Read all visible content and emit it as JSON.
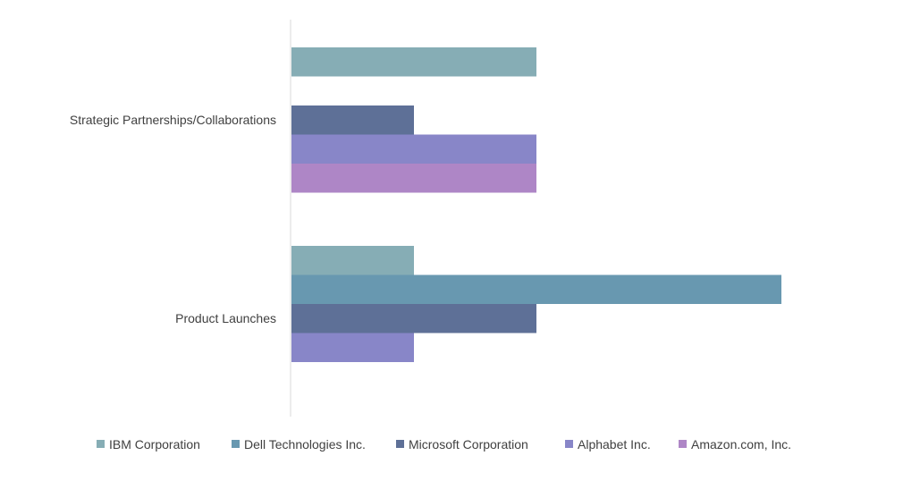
{
  "chart_data": {
    "type": "bar",
    "orientation": "horizontal",
    "categories": [
      "Strategic Partnerships/Collaborations",
      "Product Launches"
    ],
    "series": [
      {
        "name": "IBM Corporation",
        "color": "#86adb5",
        "values": [
          2,
          1
        ]
      },
      {
        "name": "Dell Technologies Inc.",
        "color": "#6898b0",
        "values": [
          0,
          4
        ]
      },
      {
        "name": "Microsoft Corporation",
        "color": "#5e7097",
        "values": [
          1,
          2
        ]
      },
      {
        "name": "Alphabet Inc.",
        "color": "#8886c8",
        "values": [
          2,
          1
        ]
      },
      {
        "name": "Amazon.com, Inc.",
        "color": "#ae86c6",
        "values": [
          2,
          0
        ]
      }
    ],
    "xlim": [
      0,
      4
    ],
    "title": "",
    "xlabel": "",
    "ylabel": "",
    "legend_position": "bottom",
    "grid": false
  }
}
